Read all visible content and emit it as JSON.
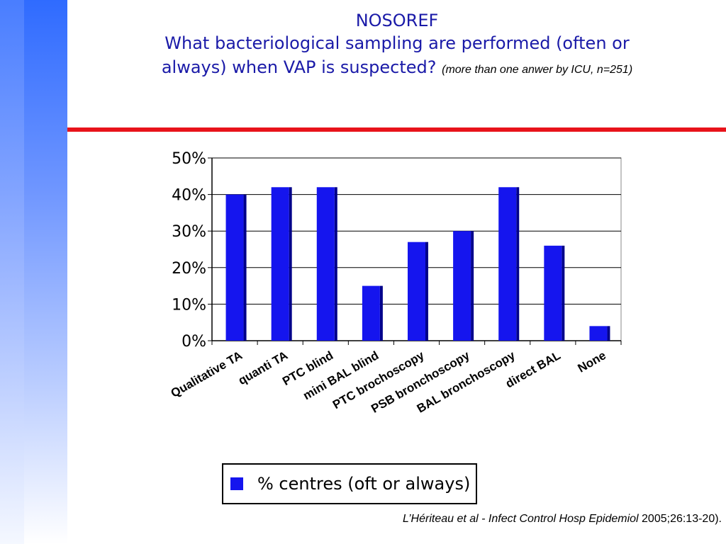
{
  "slide": {
    "title": "NOSOREF",
    "question_line1": "What bacteriological sampling are performed (often or",
    "question_line2": "always) when VAP is suspected?",
    "question_note": "(more than one anwer by ICU, n=251)",
    "citation_italic": "L’Hériteau et al - Infect Control Hosp Epidemiol",
    "citation_plain": " 2005;26:13-20)."
  },
  "colors": {
    "accent_red": "#e8131b",
    "bar_fill": "#1515ee",
    "bar_side": "#00008a",
    "title_blue": "#1a1aa8"
  },
  "chart_data": {
    "type": "bar",
    "categories": [
      "Qualitative TA",
      "quanti TA",
      "PTC blind",
      "mini BAL blind",
      "PTC brochoscopy",
      "PSB bronchoscopy",
      "BAL bronchoscopy",
      "direct BAL",
      "None"
    ],
    "series": [
      {
        "name": "% centres (oft or always)",
        "values": [
          40,
          42,
          42,
          15,
          27,
          30,
          42,
          26,
          4
        ]
      }
    ],
    "ylim": [
      0,
      50
    ],
    "yticks": [
      "0%",
      "10%",
      "20%",
      "30%",
      "40%",
      "50%"
    ],
    "grid": true,
    "legend": "bottom",
    "xlabel": "",
    "ylabel": ""
  }
}
